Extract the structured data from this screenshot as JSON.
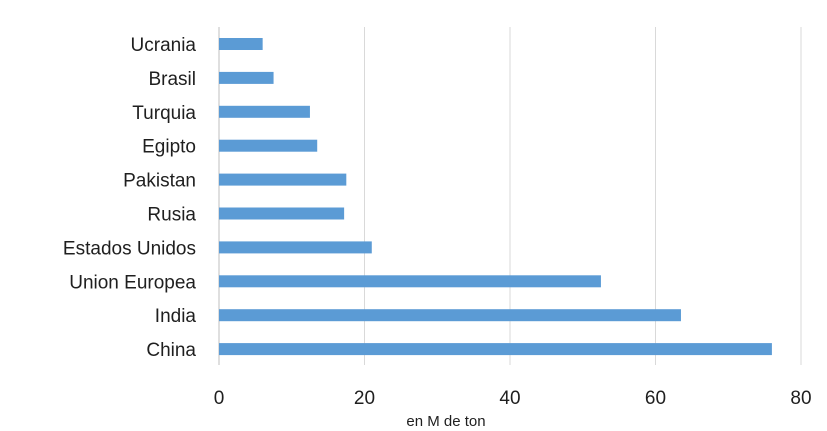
{
  "chart_data": {
    "type": "bar",
    "orientation": "horizontal",
    "categories": [
      "Ucrania",
      "Brasil",
      "Turquia",
      "Egipto",
      "Pakistan",
      "Rusia",
      "Estados Unidos",
      "Union Europea",
      "India",
      "China"
    ],
    "values": [
      6,
      7.5,
      12.5,
      13.5,
      17.5,
      17.2,
      21,
      52.5,
      63.5,
      76
    ],
    "xlabel": "en M de ton",
    "xlim": [
      0,
      80
    ],
    "xticks": [
      0,
      20,
      40,
      60,
      80
    ],
    "xtick_labels": [
      "0",
      "20",
      "40",
      "60",
      "80"
    ],
    "grid": "vertical",
    "bar_color": "#5b9bd5"
  }
}
